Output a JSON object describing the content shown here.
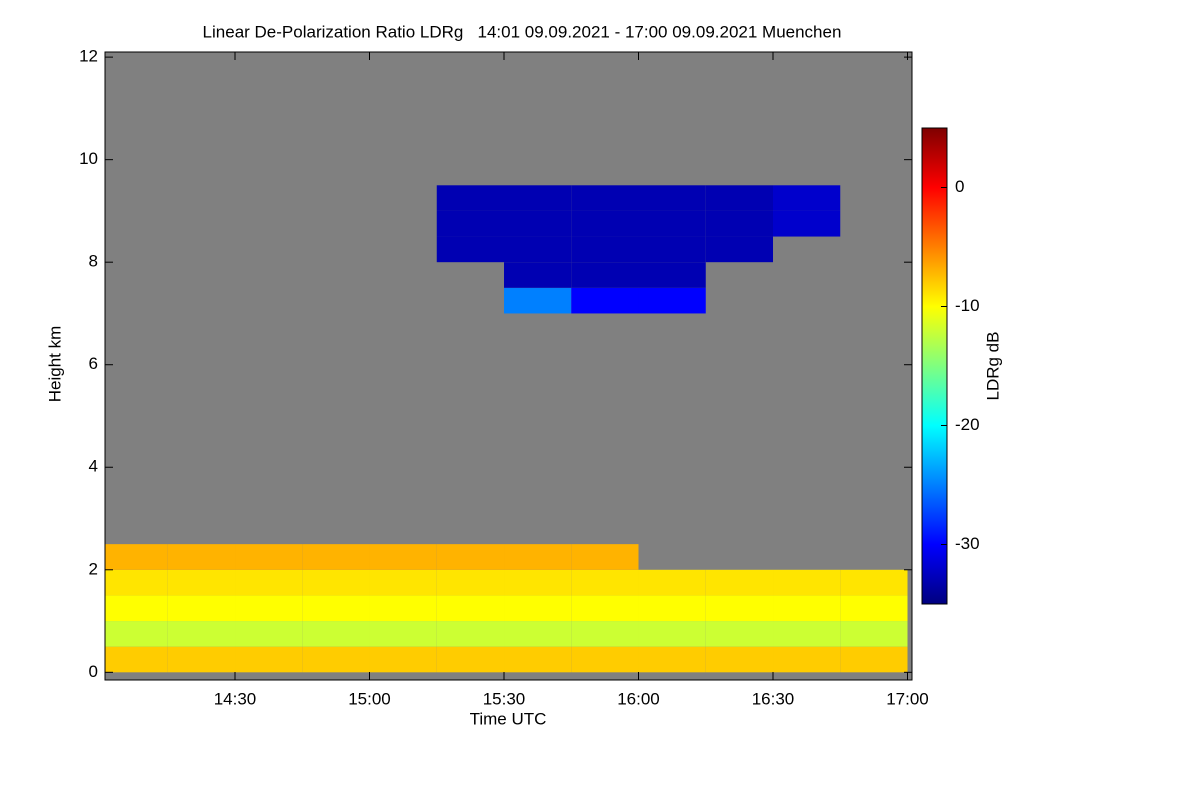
{
  "chart_data": {
    "type": "heatmap",
    "title": "Linear De-Polarization Ratio LDRg   14:01 09.09.2021 - 17:00 09.09.2021 Muenchen",
    "x_label": "Time UTC",
    "y_label": "Height km",
    "colorbar_label": "LDRg dB",
    "xlim": [
      14.0167,
      17.0167
    ],
    "xticks": [
      {
        "value": 14.5,
        "label": "14:30"
      },
      {
        "value": 15.0,
        "label": "15:00"
      },
      {
        "value": 15.5,
        "label": "15:30"
      },
      {
        "value": 16.0,
        "label": "16:00"
      },
      {
        "value": 16.5,
        "label": "16:30"
      },
      {
        "value": 17.0,
        "label": "17:00"
      }
    ],
    "ylim": [
      -0.15,
      12.1
    ],
    "yticks": [
      0,
      2,
      4,
      6,
      8,
      10,
      12
    ],
    "zlim": [
      -35,
      5
    ],
    "zticks": [
      -30,
      -20,
      -10,
      0
    ],
    "colormap": [
      "#00007f",
      "#0000ff",
      "#00ffff",
      "#ffff00",
      "#ff0000",
      "#7f0000"
    ],
    "missing_color": "#808080",
    "xbins": [
      14.0167,
      14.25,
      14.5,
      14.75,
      15.0,
      15.25,
      15.5,
      15.75,
      16.0,
      16.25,
      16.5,
      16.75,
      17.0
    ],
    "ybins": [
      0,
      0.5,
      1,
      1.5,
      2,
      2.5,
      3,
      3.5,
      4,
      4.5,
      5,
      5.5,
      6,
      6.5,
      7,
      7.5,
      8,
      8.5,
      9,
      9.5,
      10
    ],
    "z": [
      [
        -8,
        -8,
        -8,
        -8,
        -8,
        -8,
        -8,
        -8,
        -8,
        -8,
        -8,
        -8
      ],
      [
        -12,
        -12,
        -12,
        -12,
        -12,
        -12,
        -12,
        -12,
        -12,
        -12,
        -12,
        -12
      ],
      [
        -10,
        -10,
        -10,
        -10,
        -10,
        -10,
        -10,
        -10,
        -10,
        -10,
        -10,
        -10
      ],
      [
        -9,
        -9,
        -9,
        -9,
        -9,
        -9,
        -9,
        -9,
        -9,
        -9,
        -9,
        -9
      ],
      [
        -7,
        -7,
        -7,
        -7,
        -7,
        -7,
        -7,
        -7,
        null,
        null,
        null,
        null
      ],
      [
        null,
        null,
        null,
        null,
        null,
        null,
        null,
        null,
        null,
        null,
        null,
        null
      ],
      [
        null,
        null,
        null,
        null,
        null,
        null,
        null,
        null,
        null,
        null,
        null,
        null
      ],
      [
        null,
        null,
        null,
        null,
        null,
        null,
        null,
        null,
        null,
        null,
        null,
        null
      ],
      [
        null,
        null,
        null,
        null,
        null,
        null,
        null,
        null,
        null,
        null,
        null,
        null
      ],
      [
        null,
        null,
        null,
        null,
        null,
        null,
        null,
        null,
        null,
        null,
        null,
        null
      ],
      [
        null,
        null,
        null,
        null,
        null,
        null,
        null,
        null,
        null,
        null,
        null,
        null
      ],
      [
        null,
        null,
        null,
        null,
        null,
        null,
        null,
        null,
        null,
        null,
        null,
        null
      ],
      [
        null,
        null,
        null,
        null,
        null,
        null,
        null,
        null,
        null,
        null,
        null,
        null
      ],
      [
        null,
        null,
        null,
        null,
        null,
        null,
        null,
        null,
        null,
        null,
        null,
        null
      ],
      [
        null,
        null,
        null,
        null,
        null,
        null,
        -25,
        -30,
        -30,
        null,
        null,
        null
      ],
      [
        null,
        null,
        null,
        null,
        null,
        null,
        -33,
        -33,
        -33,
        null,
        null,
        null
      ],
      [
        null,
        null,
        null,
        null,
        null,
        -33,
        -33,
        -33,
        -33,
        -33,
        null,
        null
      ],
      [
        null,
        null,
        null,
        null,
        null,
        -33,
        -33,
        -33,
        -33,
        -33,
        -32,
        null
      ],
      [
        null,
        null,
        null,
        null,
        null,
        -33,
        -33,
        -33,
        -33,
        -33,
        -32,
        null
      ],
      [
        null,
        null,
        null,
        null,
        null,
        null,
        null,
        null,
        null,
        null,
        null,
        null
      ]
    ]
  }
}
